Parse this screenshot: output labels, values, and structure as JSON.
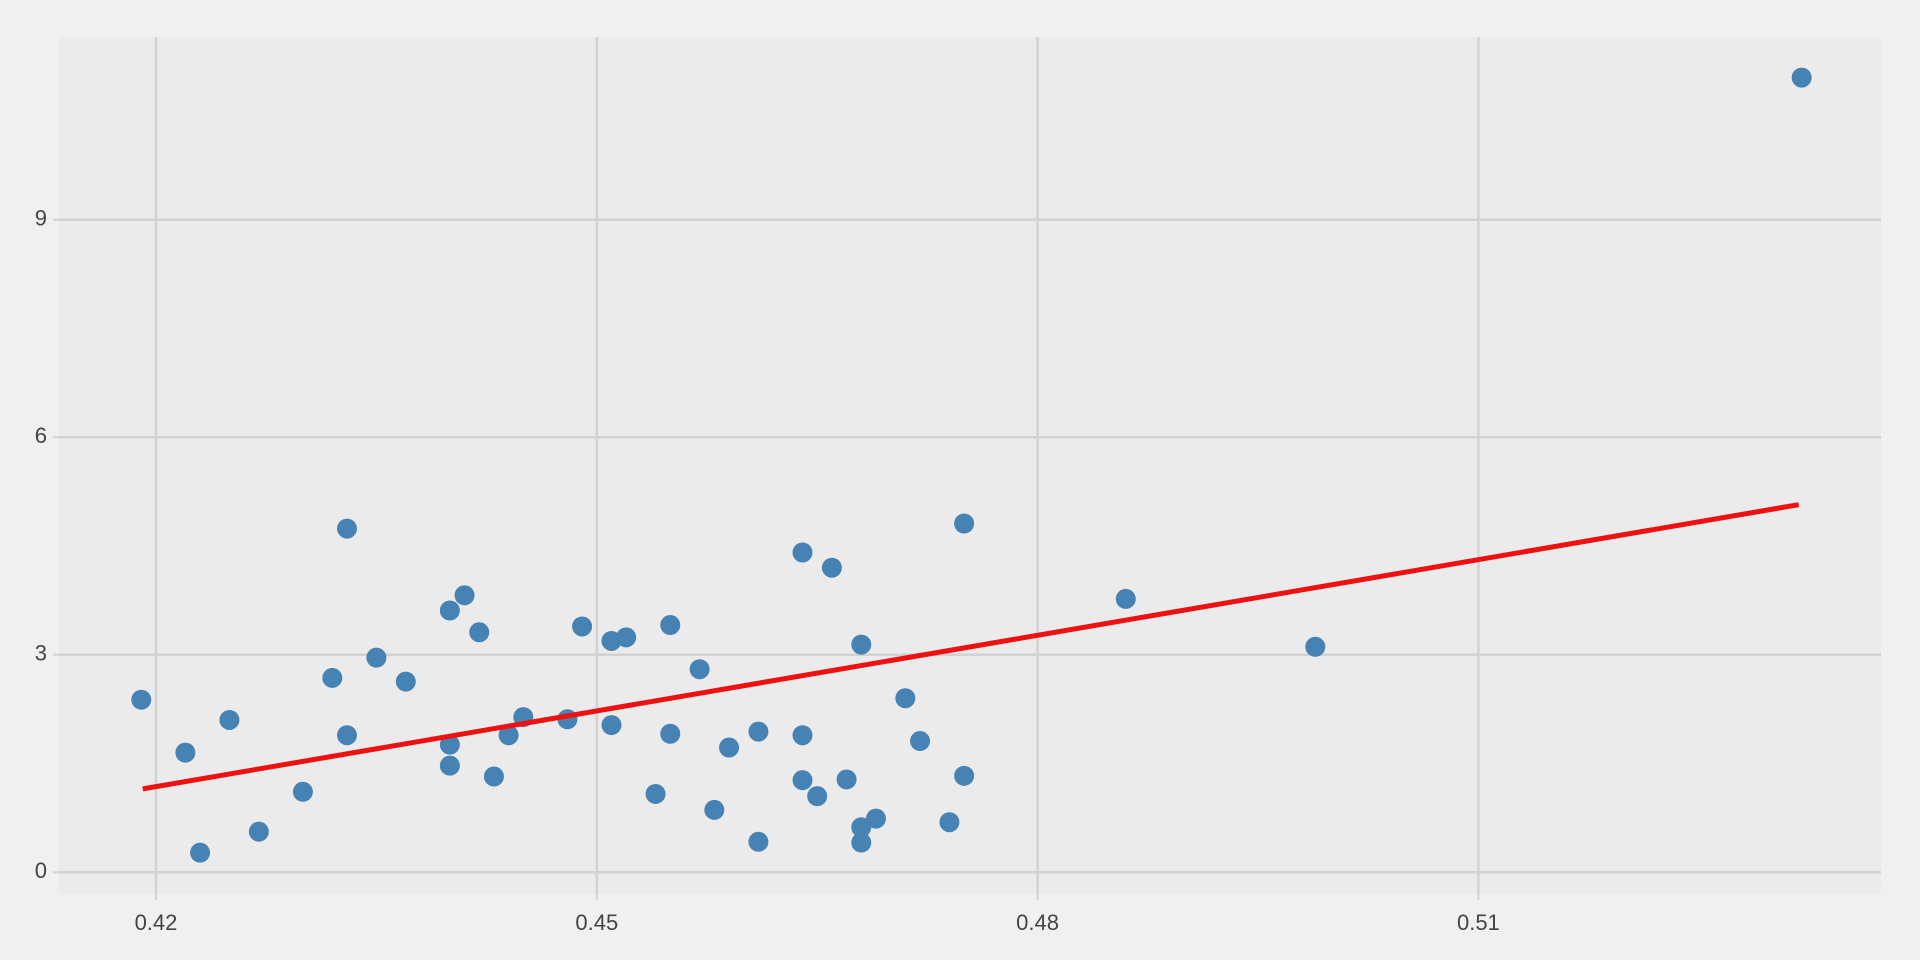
{
  "chart_data": {
    "type": "scatter",
    "x": [
      0.419,
      0.422,
      0.423,
      0.425,
      0.427,
      0.43,
      0.432,
      0.433,
      0.433,
      0.435,
      0.437,
      0.44,
      0.44,
      0.44,
      0.441,
      0.442,
      0.443,
      0.444,
      0.445,
      0.448,
      0.449,
      0.451,
      0.451,
      0.452,
      0.454,
      0.455,
      0.455,
      0.457,
      0.458,
      0.459,
      0.461,
      0.461,
      0.464,
      0.464,
      0.464,
      0.465,
      0.466,
      0.467,
      0.468,
      0.468,
      0.468,
      0.469,
      0.471,
      0.472,
      0.474,
      0.475,
      0.475,
      0.486,
      0.4989,
      0.532
    ],
    "y": [
      2.38,
      1.65,
      0.27,
      2.1,
      0.56,
      1.11,
      2.68,
      4.74,
      1.89,
      2.96,
      2.63,
      3.61,
      1.76,
      1.47,
      3.82,
      3.31,
      1.32,
      1.89,
      2.14,
      2.11,
      3.39,
      3.19,
      2.03,
      3.24,
      1.08,
      3.41,
      1.91,
      2.8,
      0.86,
      1.72,
      1.94,
      0.42,
      4.41,
      1.89,
      1.27,
      1.05,
      4.2,
      1.28,
      3.14,
      0.62,
      0.41,
      0.74,
      2.4,
      1.81,
      0.69,
      4.81,
      1.33,
      3.77,
      3.11,
      10.96
    ],
    "color": "#4682b4",
    "fit": {
      "x": [
        0.4191,
        0.5318
      ],
      "y": [
        1.15,
        5.07
      ],
      "color": "#ee1111"
    },
    "xlim": [
      0.4134,
      0.5374
    ],
    "ylim": [
      -0.3,
      11.52
    ],
    "xticks": [
      0.42,
      0.45,
      0.48,
      0.51
    ],
    "yticks": [
      0,
      3,
      6,
      9
    ],
    "grid": true
  }
}
